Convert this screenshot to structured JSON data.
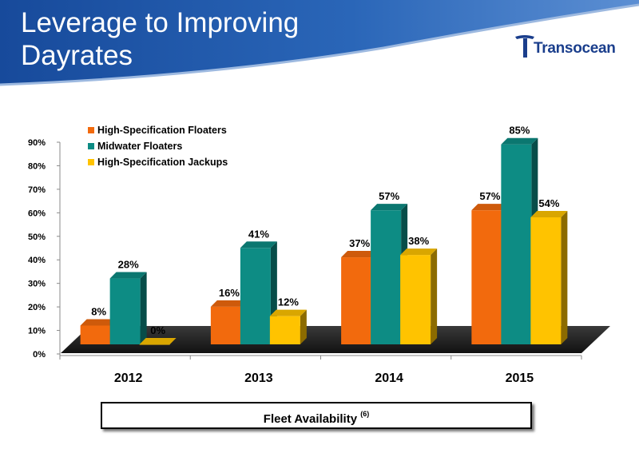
{
  "header": {
    "title_lines": [
      "Leverage to Improving",
      "Dayrates"
    ],
    "logo_text": "Transocean",
    "banner_color": "#1d4fa0"
  },
  "footer": {
    "caption": "Fleet Availability",
    "caption_note": "(6)"
  },
  "chart_data": {
    "type": "bar",
    "title": "",
    "xlabel": "",
    "ylabel": "",
    "categories": [
      "2012",
      "2013",
      "2014",
      "2015"
    ],
    "ylim": [
      0,
      90
    ],
    "yticks": [
      "0%",
      "10%",
      "20%",
      "30%",
      "40%",
      "50%",
      "60%",
      "70%",
      "80%",
      "90%"
    ],
    "value_format": "percent",
    "legend_position": "top-left",
    "grid": false,
    "series": [
      {
        "name": "High-Specification Floaters",
        "values": [
          8,
          16,
          37,
          57
        ],
        "labels": [
          "8%",
          "16%",
          "37%",
          "57%"
        ],
        "color": "#f26a0d"
      },
      {
        "name": "Midwater Floaters",
        "values": [
          28,
          41,
          57,
          85
        ],
        "labels": [
          "28%",
          "41%",
          "57%",
          "85%"
        ],
        "color": "#0d8c84"
      },
      {
        "name": "High-Specification Jackups",
        "values": [
          0,
          12,
          38,
          54
        ],
        "labels": [
          "0%",
          "12%",
          "38%",
          "54%"
        ],
        "color": "#ffc300"
      }
    ]
  }
}
